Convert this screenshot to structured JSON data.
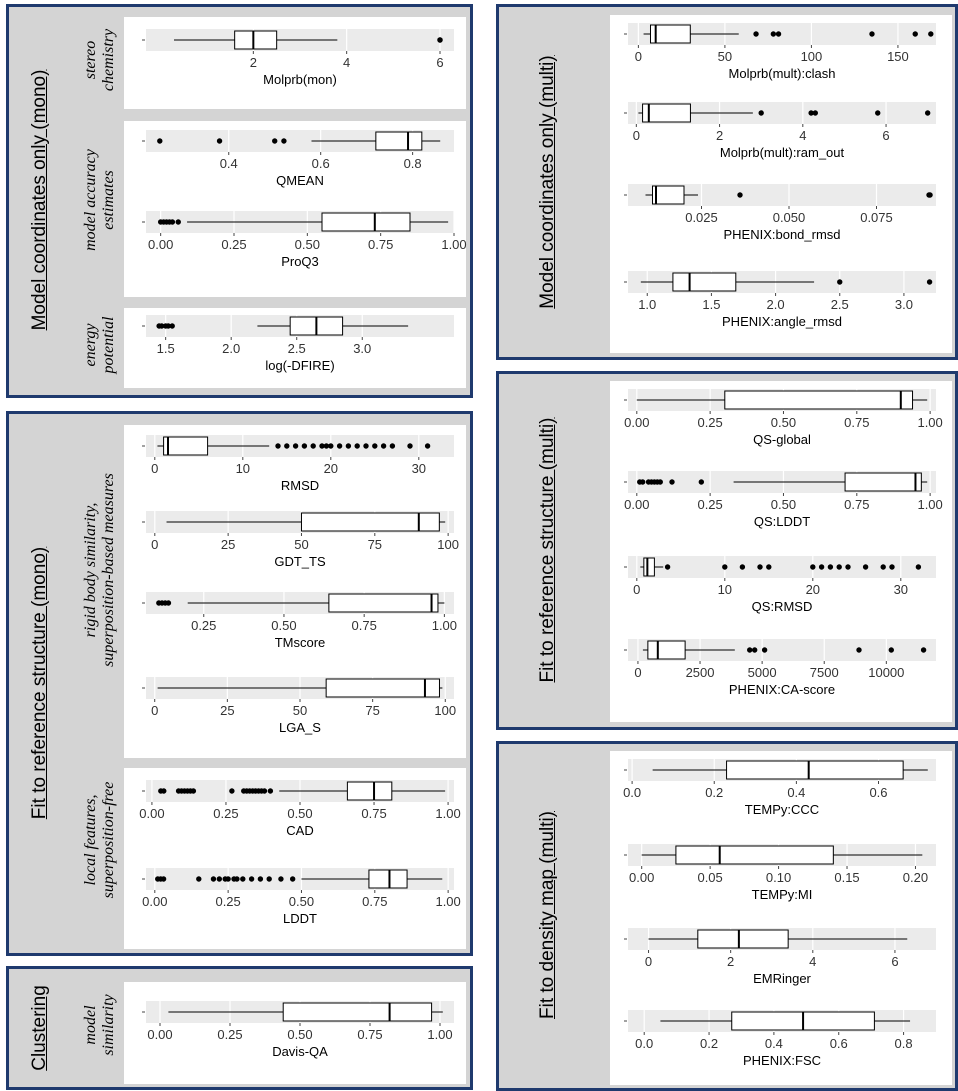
{
  "panels": [
    {
      "title": "Model coordinates only (mono)",
      "groups": [
        {
          "label": "stereo chemistry",
          "lines": [
            "stereo",
            "chemistry"
          ]
        },
        {
          "label": "model accuracy estimates",
          "lines": [
            "model accuracy",
            "estimates"
          ]
        },
        {
          "label": "energy potential",
          "lines": [
            "energy",
            "potential"
          ]
        }
      ]
    },
    {
      "title": "Fit to reference structure (mono)",
      "groups": [
        {
          "label": "rigid body similarity, superposition-based measures",
          "lines": [
            "rigid body similarity,",
            "superposition-based measures"
          ]
        },
        {
          "label": "local features, superposition-free",
          "lines": [
            "local features,",
            "superposition-free"
          ]
        }
      ]
    },
    {
      "title": "Clustering",
      "groups": [
        {
          "label": "model similarity",
          "lines": [
            "model",
            "similarity"
          ]
        }
      ]
    },
    {
      "title": "Model coordinates only (multi)",
      "groups": []
    },
    {
      "title": "Fit to reference structure (multi)",
      "groups": []
    },
    {
      "title": "Fit to density map (multi)",
      "groups": []
    }
  ],
  "colors": {
    "panel_border": "#1f3a6e",
    "panel_bg": "#d4d4d4",
    "plot_bg": "#ebebeb",
    "grid": "#ffffff",
    "box_fill": "#ffffff",
    "ink": "#000000",
    "tick_text": "#333333"
  },
  "chart_data": [
    {
      "type": "boxplot",
      "xlabel": "Molprb(mon)",
      "xlim": [
        -0.3,
        6.3
      ],
      "ticks": [
        "2",
        "4",
        "6"
      ],
      "tick_values": [
        2,
        4,
        6
      ],
      "stats": {
        "min": 0.3,
        "q1": 1.6,
        "median": 2.0,
        "q3": 2.5,
        "max": 3.8
      },
      "outliers": [
        6.0,
        6.0
      ]
    },
    {
      "type": "boxplot",
      "xlabel": "QMEAN",
      "xlim": [
        0.22,
        0.89
      ],
      "ticks": [
        "0.4",
        "0.6",
        "0.8"
      ],
      "tick_values": [
        0.4,
        0.6,
        0.8
      ],
      "stats": {
        "min": 0.58,
        "q1": 0.72,
        "median": 0.79,
        "q3": 0.82,
        "max": 0.86
      },
      "outliers": [
        0.25,
        0.38,
        0.5,
        0.52
      ]
    },
    {
      "type": "boxplot",
      "xlabel": "ProQ3",
      "xlim": [
        -0.05,
        1.0
      ],
      "ticks": [
        "0.00",
        "0.25",
        "0.50",
        "0.75",
        "1.00"
      ],
      "tick_values": [
        0,
        0.25,
        0.5,
        0.75,
        1.0
      ],
      "stats": {
        "min": 0.09,
        "q1": 0.55,
        "median": 0.73,
        "q3": 0.85,
        "max": 0.98
      },
      "outliers": [
        0.0,
        0.01,
        0.02,
        0.03,
        0.04,
        0.06
      ]
    },
    {
      "type": "boxplot",
      "xlabel": "log(-DFIRE)",
      "xlim": [
        1.35,
        3.7
      ],
      "ticks": [
        "1.5",
        "2.0",
        "2.5",
        "3.0"
      ],
      "tick_values": [
        1.5,
        2.0,
        2.5,
        3.0
      ],
      "stats": {
        "min": 2.2,
        "q1": 2.45,
        "median": 2.65,
        "q3": 2.85,
        "max": 3.35
      },
      "outliers": [
        1.45,
        1.47,
        1.5,
        1.52,
        1.55
      ]
    },
    {
      "type": "boxplot",
      "xlabel": "RMSD",
      "xlim": [
        -1,
        34
      ],
      "ticks": [
        "0",
        "10",
        "20",
        "30"
      ],
      "tick_values": [
        0,
        10,
        20,
        30
      ],
      "stats": {
        "min": 0.3,
        "q1": 1.0,
        "median": 1.5,
        "q3": 6.0,
        "max": 13.0
      },
      "outliers": [
        14,
        15,
        16,
        17,
        18,
        19,
        19.5,
        20,
        21,
        22,
        23,
        24,
        25,
        26,
        27,
        29,
        31
      ]
    },
    {
      "type": "boxplot",
      "xlabel": "GDT_TS",
      "xlim": [
        -3,
        102
      ],
      "ticks": [
        "0",
        "25",
        "50",
        "75",
        "100"
      ],
      "tick_values": [
        0,
        25,
        50,
        75,
        100
      ],
      "stats": {
        "min": 4,
        "q1": 50,
        "median": 90,
        "q3": 97,
        "max": 99
      },
      "outliers": []
    },
    {
      "type": "boxplot",
      "xlabel": "TMscore",
      "xlim": [
        0.07,
        1.03
      ],
      "ticks": [
        "0.25",
        "0.50",
        "0.75",
        "1.00"
      ],
      "tick_values": [
        0.25,
        0.5,
        0.75,
        1.0
      ],
      "stats": {
        "min": 0.2,
        "q1": 0.64,
        "median": 0.96,
        "q3": 0.98,
        "max": 1.0
      },
      "outliers": [
        0.11,
        0.12,
        0.13,
        0.14
      ]
    },
    {
      "type": "boxplot",
      "xlabel": "LGA_S",
      "xlim": [
        -3,
        103
      ],
      "ticks": [
        "0",
        "25",
        "50",
        "75",
        "100"
      ],
      "tick_values": [
        0,
        25,
        50,
        75,
        100
      ],
      "stats": {
        "min": 1,
        "q1": 59,
        "median": 93,
        "q3": 98,
        "max": 99
      },
      "outliers": []
    },
    {
      "type": "boxplot",
      "xlabel": "CAD",
      "xlim": [
        -0.02,
        1.02
      ],
      "ticks": [
        "0.00",
        "0.25",
        "0.50",
        "0.75",
        "1.00"
      ],
      "tick_values": [
        0,
        0.25,
        0.5,
        0.75,
        1.0
      ],
      "stats": {
        "min": 0.43,
        "q1": 0.66,
        "median": 0.75,
        "q3": 0.81,
        "max": 0.99
      },
      "outliers": [
        0.03,
        0.04,
        0.09,
        0.1,
        0.11,
        0.12,
        0.13,
        0.14,
        0.27,
        0.31,
        0.32,
        0.33,
        0.34,
        0.35,
        0.36,
        0.37,
        0.38,
        0.4
      ]
    },
    {
      "type": "boxplot",
      "xlabel": "LDDT",
      "xlim": [
        -0.03,
        1.02
      ],
      "ticks": [
        "0.00",
        "0.25",
        "0.50",
        "0.75",
        "1.00"
      ],
      "tick_values": [
        0,
        0.25,
        0.5,
        0.75,
        1.0
      ],
      "stats": {
        "min": 0.5,
        "q1": 0.73,
        "median": 0.8,
        "q3": 0.86,
        "max": 0.98
      },
      "outliers": [
        0.01,
        0.02,
        0.03,
        0.15,
        0.2,
        0.22,
        0.24,
        0.25,
        0.27,
        0.28,
        0.3,
        0.33,
        0.36,
        0.39,
        0.43,
        0.47
      ]
    },
    {
      "type": "boxplot",
      "xlabel": "Davis-QA",
      "xlim": [
        -0.05,
        1.05
      ],
      "ticks": [
        "0.00",
        "0.25",
        "0.50",
        "0.75",
        "1.00"
      ],
      "tick_values": [
        0,
        0.25,
        0.5,
        0.75,
        1.0
      ],
      "stats": {
        "min": 0.03,
        "q1": 0.44,
        "median": 0.82,
        "q3": 0.97,
        "max": 1.01
      },
      "outliers": []
    },
    {
      "type": "boxplot",
      "xlabel": "Molprb(mult):clash",
      "xlim": [
        -6,
        172
      ],
      "ticks": [
        "0",
        "50",
        "100",
        "150"
      ],
      "tick_values": [
        0,
        50,
        100,
        150
      ],
      "stats": {
        "min": 3,
        "q1": 7,
        "median": 10,
        "q3": 30,
        "max": 58
      },
      "outliers": [
        68,
        78,
        81,
        135,
        160,
        169
      ]
    },
    {
      "type": "boxplot",
      "xlabel": "Molprb(mult):ram_out",
      "xlim": [
        -0.2,
        7.2
      ],
      "ticks": [
        "0",
        "2",
        "4",
        "6"
      ],
      "tick_values": [
        0,
        2,
        4,
        6
      ],
      "stats": {
        "min": 0.05,
        "q1": 0.15,
        "median": 0.3,
        "q3": 1.3,
        "max": 2.8
      },
      "outliers": [
        3.0,
        4.2,
        4.3,
        5.8,
        7.0
      ]
    },
    {
      "type": "boxplot",
      "xlabel": "PHENIX:bond_rmsd",
      "xlim": [
        0.004,
        0.092
      ],
      "ticks": [
        "0.025",
        "0.050",
        "0.075"
      ],
      "tick_values": [
        0.025,
        0.05,
        0.075
      ],
      "stats": {
        "min": 0.009,
        "q1": 0.011,
        "median": 0.012,
        "q3": 0.02,
        "max": 0.024
      },
      "outliers": [
        0.036,
        0.09,
        0.0903
      ]
    },
    {
      "type": "boxplot",
      "xlabel": "PHENIX:angle_rmsd",
      "xlim": [
        0.85,
        3.25
      ],
      "ticks": [
        "1.0",
        "1.5",
        "2.0",
        "2.5",
        "3.0"
      ],
      "tick_values": [
        1.0,
        1.5,
        2.0,
        2.5,
        3.0
      ],
      "stats": {
        "min": 0.95,
        "q1": 1.2,
        "median": 1.33,
        "q3": 1.69,
        "max": 2.3
      },
      "outliers": [
        2.5,
        3.2
      ]
    },
    {
      "type": "boxplot",
      "xlabel": "QS-global",
      "xlim": [
        -0.03,
        1.02
      ],
      "ticks": [
        "0.00",
        "0.25",
        "0.50",
        "0.75",
        "1.00"
      ],
      "tick_values": [
        0,
        0.25,
        0.5,
        0.75,
        1.0
      ],
      "stats": {
        "min": 0.0,
        "q1": 0.3,
        "median": 0.9,
        "q3": 0.94,
        "max": 0.99
      },
      "outliers": []
    },
    {
      "type": "boxplot",
      "xlabel": "QS:LDDT",
      "xlim": [
        -0.03,
        1.02
      ],
      "ticks": [
        "0.00",
        "0.25",
        "0.50",
        "0.75",
        "1.00"
      ],
      "tick_values": [
        0,
        0.25,
        0.5,
        0.75,
        1.0
      ],
      "stats": {
        "min": 0.33,
        "q1": 0.71,
        "median": 0.95,
        "q3": 0.97,
        "max": 0.99
      },
      "outliers": [
        0.01,
        0.02,
        0.04,
        0.05,
        0.06,
        0.07,
        0.08,
        0.12,
        0.22
      ]
    },
    {
      "type": "boxplot",
      "xlabel": "QS:RMSD",
      "xlim": [
        -1,
        34
      ],
      "ticks": [
        "0",
        "10",
        "20",
        "30"
      ],
      "tick_values": [
        0,
        10,
        20,
        30
      ],
      "stats": {
        "min": 0.4,
        "q1": 0.8,
        "median": 1.2,
        "q3": 2.0,
        "max": 3.0
      },
      "outliers": [
        3.5,
        10,
        12,
        14,
        15,
        20,
        21,
        22,
        23,
        24,
        26,
        28,
        29,
        32
      ]
    },
    {
      "type": "boxplot",
      "xlabel": "PHENIX:CA-score",
      "xlim": [
        -400,
        12000
      ],
      "ticks": [
        "0",
        "2500",
        "5000",
        "7500",
        "10000"
      ],
      "tick_values": [
        0,
        2500,
        5000,
        7500,
        10000
      ],
      "stats": {
        "min": 200,
        "q1": 400,
        "median": 800,
        "q3": 1900,
        "max": 3900
      },
      "outliers": [
        4500,
        4700,
        5100,
        8900,
        10200,
        11500
      ]
    },
    {
      "type": "boxplot",
      "xlabel": "TEMPy:CCC",
      "xlim": [
        -0.01,
        0.74
      ],
      "ticks": [
        "0.0",
        "0.2",
        "0.4",
        "0.6"
      ],
      "tick_values": [
        0,
        0.2,
        0.4,
        0.6
      ],
      "stats": {
        "min": 0.05,
        "q1": 0.23,
        "median": 0.43,
        "q3": 0.66,
        "max": 0.72
      },
      "outliers": []
    },
    {
      "type": "boxplot",
      "xlabel": "TEMPy:MI",
      "xlim": [
        -0.01,
        0.215
      ],
      "ticks": [
        "0.00",
        "0.05",
        "0.10",
        "0.15",
        "0.20"
      ],
      "tick_values": [
        0,
        0.05,
        0.1,
        0.15,
        0.2
      ],
      "stats": {
        "min": 0.0,
        "q1": 0.025,
        "median": 0.057,
        "q3": 0.14,
        "max": 0.205
      },
      "outliers": []
    },
    {
      "type": "boxplot",
      "xlabel": "EMRinger",
      "xlim": [
        -0.5,
        7.0
      ],
      "ticks": [
        "0",
        "2",
        "4",
        "6"
      ],
      "tick_values": [
        0,
        2,
        4,
        6
      ],
      "stats": {
        "min": 0.0,
        "q1": 1.2,
        "median": 2.2,
        "q3": 3.4,
        "max": 6.3
      },
      "outliers": []
    },
    {
      "type": "boxplot",
      "xlabel": "PHENIX:FSC",
      "xlim": [
        -0.05,
        0.9
      ],
      "ticks": [
        "0.0",
        "0.2",
        "0.4",
        "0.6",
        "0.8"
      ],
      "tick_values": [
        0,
        0.2,
        0.4,
        0.6,
        0.8
      ],
      "stats": {
        "min": 0.05,
        "q1": 0.27,
        "median": 0.49,
        "q3": 0.71,
        "max": 0.82
      },
      "outliers": []
    }
  ]
}
